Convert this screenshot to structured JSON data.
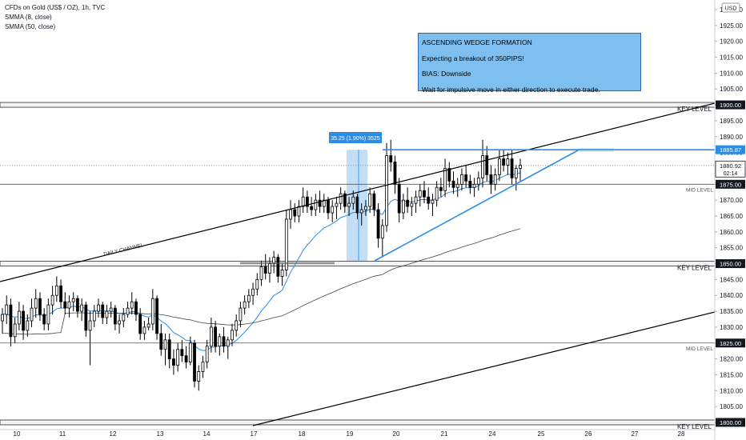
{
  "header": {
    "symbol_line": "CFDs on Gold (US$ / OZ), 1h, TVC",
    "indicator_1": "SMMA (8, close)",
    "indicator_2": "SMMA (50, close)",
    "currency_badge": "USD"
  },
  "annotation_box": {
    "line_1": "ASCENDING WEDGE FORMATION",
    "line_2": "Expecting a breakout of 350PIPS!",
    "line_3": "BIAS: Downside",
    "line_4": "Wait for impulsive move in either direction to execute trade."
  },
  "colors": {
    "accent_blue": "#2b8ce6",
    "note_fill": "#7fbfef",
    "price_label_dark": "#131722",
    "candle": "#000000",
    "fast_ma": "#2b8ce6",
    "slow_ma": "#444444"
  },
  "chart_data": {
    "type": "line",
    "title": "CFDs on Gold (US$ / OZ), 1h, TVC",
    "x_ticks": [
      "10",
      "11",
      "12",
      "13",
      "14",
      "17",
      "18",
      "19",
      "20",
      "21",
      "24",
      "25",
      "26",
      "27",
      "28"
    ],
    "y_ticks": [
      1800,
      1805,
      1810,
      1815,
      1820,
      1825,
      1830,
      1835,
      1840,
      1845,
      1850,
      1855,
      1860,
      1865,
      1870,
      1875,
      1880,
      1885,
      1890,
      1895,
      1900,
      1905,
      1910,
      1915,
      1920,
      1925,
      1930
    ],
    "y_range": [
      1797,
      1933
    ],
    "y_top_tick_label": "1930.00",
    "price_labels": [
      {
        "value": 1900.0,
        "text": "1900.00",
        "style": "dark"
      },
      {
        "value": 1885.87,
        "text": "1885.87",
        "style": "blue"
      },
      {
        "value": 1880.92,
        "text": "1880.92",
        "style": "white",
        "sub": "02:14"
      },
      {
        "value": 1875.0,
        "text": "1875.00",
        "style": "dark"
      },
      {
        "value": 1850.0,
        "text": "1850.00",
        "style": "dark"
      },
      {
        "value": 1825.0,
        "text": "1825.00",
        "style": "dark"
      },
      {
        "value": 1800.0,
        "text": "1800.00",
        "style": "dark"
      }
    ],
    "horizontal_levels": [
      {
        "value": 1900.0,
        "label": "KEY LEVEL",
        "kind": "zone"
      },
      {
        "value": 1875.0,
        "label": "MID LEVEL",
        "kind": "line"
      },
      {
        "value": 1850.0,
        "label": "KEY LEVEL",
        "kind": "zone"
      },
      {
        "value": 1825.0,
        "label": "MID LEVEL",
        "kind": "line"
      },
      {
        "value": 1800.0,
        "label": "KEY LEVEL",
        "kind": "zone"
      }
    ],
    "current_price_line": 1880.92,
    "measure_label": "35.25 (1.90%) 3525",
    "channel_label": "DAILY CHANNEL",
    "candles_ohlc": [
      [
        1832,
        1836,
        1828,
        1834
      ],
      [
        1834,
        1840,
        1831,
        1837
      ],
      [
        1837,
        1839,
        1824,
        1827
      ],
      [
        1827,
        1833,
        1825,
        1831
      ],
      [
        1831,
        1838,
        1829,
        1835
      ],
      [
        1835,
        1837,
        1826,
        1829
      ],
      [
        1829,
        1834,
        1827,
        1832
      ],
      [
        1832,
        1839,
        1830,
        1836
      ],
      [
        1836,
        1842,
        1833,
        1839
      ],
      [
        1839,
        1841,
        1832,
        1834
      ],
      [
        1834,
        1836,
        1829,
        1831
      ],
      [
        1831,
        1839,
        1829,
        1837
      ],
      [
        1837,
        1843,
        1834,
        1840
      ],
      [
        1840,
        1846,
        1838,
        1843
      ],
      [
        1843,
        1845,
        1836,
        1838
      ],
      [
        1838,
        1841,
        1834,
        1836
      ],
      [
        1836,
        1840,
        1833,
        1838
      ],
      [
        1838,
        1841,
        1835,
        1839
      ],
      [
        1839,
        1840,
        1833,
        1835
      ],
      [
        1835,
        1839,
        1832,
        1837
      ],
      [
        1837,
        1838,
        1827,
        1829
      ],
      [
        1829,
        1835,
        1818,
        1832
      ],
      [
        1832,
        1837,
        1830,
        1835
      ],
      [
        1835,
        1839,
        1833,
        1837
      ],
      [
        1837,
        1838,
        1831,
        1833
      ],
      [
        1833,
        1837,
        1831,
        1835
      ],
      [
        1835,
        1838,
        1833,
        1836
      ],
      [
        1836,
        1837,
        1829,
        1831
      ],
      [
        1831,
        1834,
        1828,
        1832
      ],
      [
        1832,
        1836,
        1830,
        1834
      ],
      [
        1834,
        1838,
        1833,
        1836
      ],
      [
        1836,
        1841,
        1834,
        1838
      ],
      [
        1838,
        1839,
        1832,
        1834
      ],
      [
        1834,
        1836,
        1826,
        1828
      ],
      [
        1828,
        1832,
        1826,
        1830
      ],
      [
        1830,
        1833,
        1829,
        1831
      ],
      [
        1831,
        1842,
        1829,
        1839
      ],
      [
        1839,
        1840,
        1826,
        1828
      ],
      [
        1828,
        1831,
        1821,
        1823
      ],
      [
        1823,
        1828,
        1818,
        1826
      ],
      [
        1826,
        1828,
        1817,
        1820
      ],
      [
        1820,
        1823,
        1815,
        1818
      ],
      [
        1818,
        1825,
        1816,
        1823
      ],
      [
        1823,
        1826,
        1819,
        1821
      ],
      [
        1821,
        1824,
        1817,
        1819
      ],
      [
        1819,
        1827,
        1818,
        1825
      ],
      [
        1825,
        1826,
        1811,
        1813
      ],
      [
        1813,
        1818,
        1810,
        1816
      ],
      [
        1816,
        1821,
        1814,
        1819
      ],
      [
        1819,
        1826,
        1817,
        1824
      ],
      [
        1824,
        1833,
        1822,
        1830
      ],
      [
        1830,
        1832,
        1822,
        1824
      ],
      [
        1824,
        1828,
        1821,
        1827
      ],
      [
        1827,
        1830,
        1822,
        1824
      ],
      [
        1824,
        1827,
        1820,
        1826
      ],
      [
        1826,
        1831,
        1824,
        1829
      ],
      [
        1829,
        1834,
        1827,
        1832
      ],
      [
        1832,
        1838,
        1830,
        1836
      ],
      [
        1836,
        1840,
        1834,
        1838
      ],
      [
        1838,
        1842,
        1836,
        1840
      ],
      [
        1840,
        1844,
        1837,
        1842
      ],
      [
        1842,
        1847,
        1840,
        1845
      ],
      [
        1845,
        1851,
        1843,
        1849
      ],
      [
        1849,
        1853,
        1845,
        1847
      ],
      [
        1847,
        1852,
        1844,
        1850
      ],
      [
        1850,
        1854,
        1847,
        1852
      ],
      [
        1852,
        1853,
        1844,
        1846
      ],
      [
        1846,
        1850,
        1843,
        1848
      ],
      [
        1848,
        1867,
        1846,
        1864
      ],
      [
        1864,
        1870,
        1861,
        1867
      ],
      [
        1867,
        1869,
        1863,
        1865
      ],
      [
        1865,
        1870,
        1863,
        1868
      ],
      [
        1868,
        1874,
        1866,
        1871
      ],
      [
        1871,
        1873,
        1866,
        1868
      ],
      [
        1868,
        1871,
        1865,
        1867
      ],
      [
        1867,
        1872,
        1865,
        1870
      ],
      [
        1870,
        1873,
        1866,
        1868
      ],
      [
        1868,
        1872,
        1866,
        1870
      ],
      [
        1870,
        1871,
        1864,
        1866
      ],
      [
        1866,
        1870,
        1863,
        1868
      ],
      [
        1868,
        1871,
        1864,
        1869
      ],
      [
        1869,
        1874,
        1867,
        1872
      ],
      [
        1872,
        1873,
        1866,
        1868
      ],
      [
        1868,
        1871,
        1865,
        1869
      ],
      [
        1869,
        1873,
        1867,
        1871
      ],
      [
        1871,
        1872,
        1864,
        1866
      ],
      [
        1866,
        1869,
        1862,
        1867
      ],
      [
        1867,
        1870,
        1865,
        1868
      ],
      [
        1868,
        1874,
        1866,
        1872
      ],
      [
        1872,
        1873,
        1865,
        1867
      ],
      [
        1867,
        1869,
        1855,
        1858
      ],
      [
        1858,
        1864,
        1852,
        1862
      ],
      [
        1862,
        1888,
        1860,
        1884
      ],
      [
        1884,
        1889,
        1879,
        1882
      ],
      [
        1882,
        1884,
        1872,
        1875
      ],
      [
        1875,
        1877,
        1863,
        1866
      ],
      [
        1866,
        1872,
        1864,
        1870
      ],
      [
        1870,
        1874,
        1866,
        1868
      ],
      [
        1868,
        1871,
        1865,
        1869
      ],
      [
        1869,
        1873,
        1866,
        1871
      ],
      [
        1871,
        1875,
        1868,
        1873
      ],
      [
        1873,
        1876,
        1869,
        1871
      ],
      [
        1871,
        1874,
        1867,
        1869
      ],
      [
        1869,
        1872,
        1865,
        1870
      ],
      [
        1870,
        1876,
        1868,
        1874
      ],
      [
        1874,
        1877,
        1871,
        1873
      ],
      [
        1873,
        1883,
        1871,
        1880
      ],
      [
        1880,
        1882,
        1874,
        1876
      ],
      [
        1876,
        1879,
        1872,
        1874
      ],
      [
        1874,
        1877,
        1871,
        1875
      ],
      [
        1875,
        1880,
        1873,
        1878
      ],
      [
        1878,
        1881,
        1874,
        1876
      ],
      [
        1876,
        1878,
        1872,
        1874
      ],
      [
        1874,
        1877,
        1871,
        1875
      ],
      [
        1875,
        1879,
        1873,
        1877
      ],
      [
        1877,
        1889,
        1874,
        1884
      ],
      [
        1884,
        1887,
        1876,
        1878
      ],
      [
        1878,
        1881,
        1872,
        1875
      ],
      [
        1875,
        1880,
        1873,
        1878
      ],
      [
        1878,
        1886,
        1876,
        1883
      ],
      [
        1883,
        1886,
        1879,
        1881
      ],
      [
        1881,
        1885,
        1878,
        1883
      ],
      [
        1883,
        1886,
        1875,
        1877
      ],
      [
        1877,
        1881,
        1873,
        1880
      ],
      [
        1880,
        1883,
        1876,
        1881
      ]
    ]
  }
}
